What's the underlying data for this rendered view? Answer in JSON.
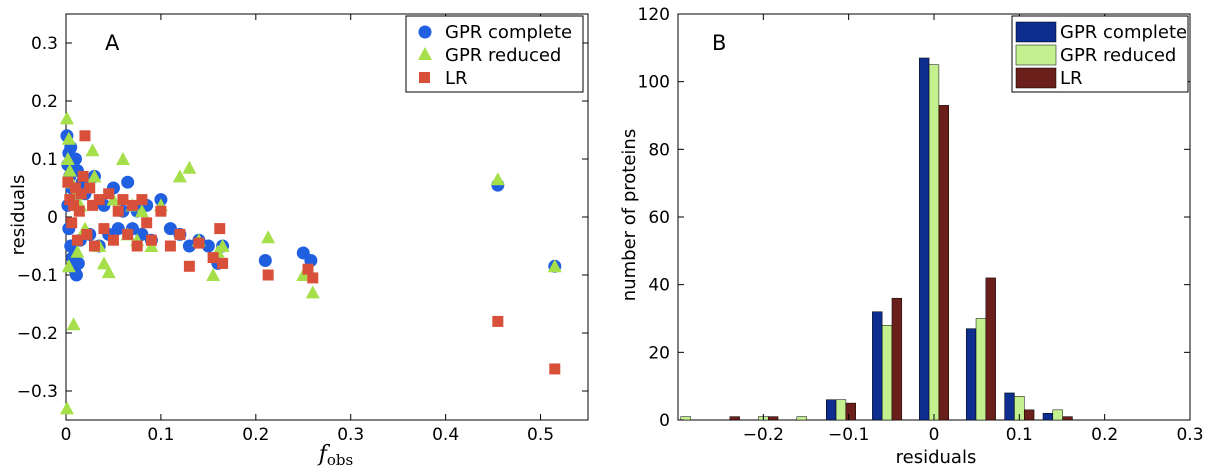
{
  "colors": {
    "gpr_complete_scatter": "#1f5fe0",
    "gpr_reduced_scatter": "#a5e04a",
    "lr_scatter": "#d9503a",
    "gpr_complete_bar": "#0d2d8f",
    "gpr_reduced_bar": "#c4f090",
    "lr_bar": "#6b1f1a"
  },
  "chart_data": [
    {
      "type": "scatter",
      "panel_label": "A",
      "xlabel_main": "f",
      "xlabel_sub": "obs",
      "ylabel": "residuals",
      "xlim": [
        0,
        0.55
      ],
      "ylim": [
        -0.35,
        0.35
      ],
      "x_ticks": [
        0,
        0.1,
        0.2,
        0.3,
        0.4,
        0.5
      ],
      "x_tick_labels": [
        "0",
        "0.1",
        "0.2",
        "0.3",
        "0.4",
        "0.5"
      ],
      "y_ticks": [
        -0.3,
        -0.2,
        -0.1,
        0,
        0.1,
        0.2,
        0.3
      ],
      "y_tick_labels": [
        "−0.3",
        "−0.2",
        "−0.1",
        "0",
        "0.1",
        "0.2",
        "0.3"
      ],
      "legend_position": "top-right",
      "series": [
        {
          "name": "GPR complete",
          "marker": "circle",
          "points": [
            [
              0.001,
              0.14
            ],
            [
              0.003,
              0.11
            ],
            [
              0.005,
              0.12
            ],
            [
              0.002,
              0.09
            ],
            [
              0.004,
              0.07
            ],
            [
              0.006,
              0.05
            ],
            [
              0.008,
              0.03
            ],
            [
              0.01,
              0.1
            ],
            [
              0.012,
              0.08
            ],
            [
              0.002,
              0.02
            ],
            [
              0.003,
              -0.02
            ],
            [
              0.005,
              -0.05
            ],
            [
              0.007,
              -0.07
            ],
            [
              0.009,
              -0.09
            ],
            [
              0.011,
              -0.1
            ],
            [
              0.013,
              -0.08
            ],
            [
              0.015,
              -0.04
            ],
            [
              0.017,
              0.06
            ],
            [
              0.02,
              0.04
            ],
            [
              0.025,
              -0.03
            ],
            [
              0.03,
              0.07
            ],
            [
              0.035,
              -0.05
            ],
            [
              0.04,
              0.02
            ],
            [
              0.045,
              -0.03
            ],
            [
              0.05,
              0.05
            ],
            [
              0.055,
              -0.02
            ],
            [
              0.06,
              0.01
            ],
            [
              0.065,
              0.06
            ],
            [
              0.07,
              -0.02
            ],
            [
              0.075,
              0.01
            ],
            [
              0.08,
              -0.03
            ],
            [
              0.085,
              0.02
            ],
            [
              0.09,
              -0.04
            ],
            [
              0.1,
              0.03
            ],
            [
              0.11,
              -0.02
            ],
            [
              0.12,
              -0.03
            ],
            [
              0.13,
              -0.05
            ],
            [
              0.14,
              -0.04
            ],
            [
              0.15,
              -0.05
            ],
            [
              0.16,
              -0.08
            ],
            [
              0.165,
              -0.05
            ],
            [
              0.21,
              -0.075
            ],
            [
              0.25,
              -0.062
            ],
            [
              0.258,
              -0.075
            ],
            [
              0.455,
              0.055
            ],
            [
              0.515,
              -0.085
            ]
          ]
        },
        {
          "name": "GPR reduced",
          "marker": "triangle",
          "points": [
            [
              0.001,
              0.17
            ],
            [
              0.003,
              0.135
            ],
            [
              0.002,
              0.1
            ],
            [
              0.004,
              0.08
            ],
            [
              0.006,
              0.06
            ],
            [
              0.008,
              -0.185
            ],
            [
              0.001,
              -0.33
            ],
            [
              0.003,
              -0.085
            ],
            [
              0.01,
              0.04
            ],
            [
              0.012,
              -0.06
            ],
            [
              0.015,
              0.02
            ],
            [
              0.02,
              -0.02
            ],
            [
              0.028,
              0.115
            ],
            [
              0.03,
              0.07
            ],
            [
              0.035,
              -0.05
            ],
            [
              0.04,
              -0.08
            ],
            [
              0.045,
              -0.095
            ],
            [
              0.05,
              0.03
            ],
            [
              0.06,
              0.1
            ],
            [
              0.065,
              -0.03
            ],
            [
              0.07,
              0.02
            ],
            [
              0.075,
              -0.04
            ],
            [
              0.08,
              0.01
            ],
            [
              0.09,
              -0.05
            ],
            [
              0.1,
              0.02
            ],
            [
              0.12,
              0.07
            ],
            [
              0.13,
              0.085
            ],
            [
              0.14,
              -0.04
            ],
            [
              0.155,
              -0.1
            ],
            [
              0.16,
              -0.06
            ],
            [
              0.165,
              -0.05
            ],
            [
              0.213,
              -0.035
            ],
            [
              0.25,
              -0.1
            ],
            [
              0.26,
              -0.13
            ],
            [
              0.455,
              0.065
            ],
            [
              0.515,
              -0.085
            ]
          ]
        },
        {
          "name": "LR",
          "marker": "square",
          "points": [
            [
              0.002,
              0.06
            ],
            [
              0.004,
              0.03
            ],
            [
              0.006,
              -0.01
            ],
            [
              0.008,
              0.02
            ],
            [
              0.01,
              0.05
            ],
            [
              0.012,
              -0.04
            ],
            [
              0.014,
              0.01
            ],
            [
              0.016,
              0.04
            ],
            [
              0.018,
              0.07
            ],
            [
              0.02,
              0.14
            ],
            [
              0.022,
              -0.03
            ],
            [
              0.025,
              0.05
            ],
            [
              0.028,
              0.02
            ],
            [
              0.03,
              -0.05
            ],
            [
              0.035,
              0.03
            ],
            [
              0.04,
              -0.02
            ],
            [
              0.045,
              0.04
            ],
            [
              0.05,
              -0.04
            ],
            [
              0.055,
              0.01
            ],
            [
              0.06,
              0.03
            ],
            [
              0.065,
              -0.03
            ],
            [
              0.07,
              0.02
            ],
            [
              0.075,
              -0.05
            ],
            [
              0.08,
              0.03
            ],
            [
              0.085,
              -0.01
            ],
            [
              0.09,
              -0.04
            ],
            [
              0.1,
              0.01
            ],
            [
              0.11,
              -0.05
            ],
            [
              0.12,
              -0.03
            ],
            [
              0.13,
              -0.085
            ],
            [
              0.14,
              -0.045
            ],
            [
              0.155,
              -0.07
            ],
            [
              0.162,
              -0.02
            ],
            [
              0.165,
              -0.08
            ],
            [
              0.213,
              -0.1
            ],
            [
              0.255,
              -0.09
            ],
            [
              0.26,
              -0.105
            ],
            [
              0.455,
              -0.18
            ],
            [
              0.515,
              -0.262
            ]
          ]
        }
      ]
    },
    {
      "type": "bar",
      "panel_label": "B",
      "xlabel": "residuals",
      "ylabel": "number of proteins",
      "xlim": [
        -0.3,
        0.3
      ],
      "ylim": [
        0,
        120
      ],
      "x_ticks": [
        -0.2,
        -0.1,
        0,
        0.1,
        0.2,
        0.3
      ],
      "x_tick_labels": [
        "−0.2",
        "−0.1",
        "0",
        "0.1",
        "0.2",
        "0.3"
      ],
      "y_ticks": [
        0,
        20,
        40,
        60,
        80,
        100,
        120
      ],
      "y_tick_labels": [
        "0",
        "20",
        "40",
        "60",
        "80",
        "100",
        "120"
      ],
      "legend_position": "top-right",
      "bin_centers": [
        -0.291,
        -0.245,
        -0.2,
        -0.155,
        -0.109,
        -0.055,
        0,
        0.055,
        0.1,
        0.145
      ],
      "bar_width": 0.0115,
      "series": [
        {
          "name": "GPR complete",
          "values": [
            0,
            0,
            0,
            0,
            6,
            32,
            107,
            27,
            8,
            2
          ]
        },
        {
          "name": "GPR reduced",
          "values": [
            1,
            0,
            1,
            1,
            6,
            28,
            105,
            30,
            7,
            3
          ]
        },
        {
          "name": "LR",
          "values": [
            0,
            1,
            1,
            0,
            5,
            36,
            93,
            42,
            3,
            1
          ]
        }
      ]
    }
  ]
}
